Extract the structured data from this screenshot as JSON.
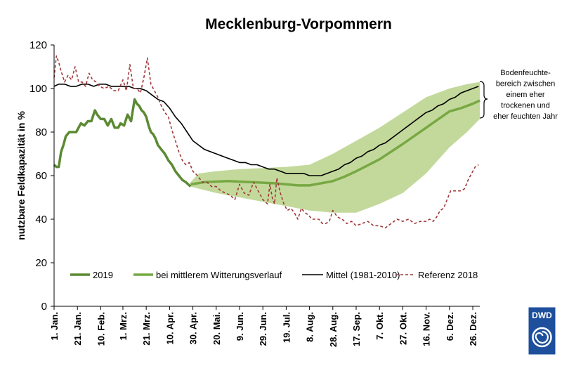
{
  "chart_data": {
    "type": "line",
    "title": "Mecklenburg-Vorpommern",
    "ylabel": "nutzbare Feldkapazität in %",
    "xlabel": "",
    "ylim": [
      0,
      120
    ],
    "yticks": [
      "0",
      "20",
      "40",
      "60",
      "80",
      "100",
      "120"
    ],
    "x_unit": "day of year",
    "xlim": [
      1,
      366
    ],
    "categories": [
      "1. Jan.",
      "21. Jan.",
      "10. Feb.",
      "1. Mrz.",
      "21. Mrz.",
      "10. Apr.",
      "30. Apr.",
      "20. Mai.",
      "9. Jun.",
      "29. Jun.",
      "19. Jul.",
      "8. Aug.",
      "28. Aug.",
      "17. Sep.",
      "7. Okt.",
      "27. Okt.",
      "16. Nov.",
      "6. Dez.",
      "26. Dez."
    ],
    "category_days": [
      1,
      21,
      41,
      60,
      80,
      100,
      120,
      140,
      160,
      180,
      200,
      220,
      240,
      260,
      280,
      300,
      320,
      340,
      360
    ],
    "grid": false,
    "legend_position": "bottom",
    "annotation": [
      "Bodenfeuchte-",
      "bereich zwischen",
      "einem eher",
      "trockenen und",
      "eher feuchten Jahr"
    ],
    "logo": "DWD",
    "colors": {
      "s2019": "#5b8a32",
      "forecast": "#77a843",
      "band": "#c3d99b",
      "mittel": "#000000",
      "referenz": "#a0393a"
    },
    "series": [
      {
        "name": "2019",
        "style": "solid-thick",
        "x": [
          1,
          3,
          5,
          7,
          9,
          11,
          14,
          17,
          20,
          24,
          27,
          30,
          33,
          36,
          38,
          41,
          44,
          47,
          50,
          53,
          56,
          58,
          61,
          64,
          67,
          70,
          72,
          74,
          76,
          78,
          80,
          82,
          84,
          86,
          88,
          90,
          93,
          96,
          99,
          102,
          105,
          108,
          111,
          114,
          116,
          118
        ],
        "y": [
          65,
          64,
          64,
          71,
          74,
          78,
          80,
          80,
          80,
          84,
          83,
          85,
          85,
          90,
          88,
          86,
          86,
          83,
          86,
          82,
          82,
          84,
          83,
          88,
          85,
          95,
          93,
          92,
          90,
          89,
          87,
          83,
          80,
          79,
          77,
          74,
          72,
          70,
          67,
          65,
          62,
          60,
          58,
          57,
          56,
          55
        ]
      },
      {
        "name": "bei mittlerem Witterungsverlauf",
        "style": "solid-medium",
        "x": [
          118,
          130,
          150,
          170,
          190,
          210,
          220,
          230,
          240,
          250,
          260,
          280,
          300,
          320,
          340,
          350,
          360,
          366
        ],
        "y": [
          56,
          57,
          57.5,
          57,
          56.5,
          55.5,
          55.5,
          56.5,
          57.5,
          59.5,
          62,
          67.5,
          74.5,
          82,
          89.5,
          91,
          93,
          94.5
        ]
      },
      {
        "name": "Mittel (1981-2010)",
        "style": "solid-thin",
        "x": [
          1,
          5,
          10,
          15,
          20,
          25,
          30,
          35,
          40,
          45,
          50,
          55,
          60,
          65,
          70,
          75,
          80,
          85,
          90,
          95,
          100,
          105,
          110,
          115,
          120,
          125,
          130,
          135,
          140,
          145,
          150,
          155,
          160,
          165,
          170,
          175,
          180,
          185,
          190,
          195,
          200,
          205,
          210,
          215,
          220,
          225,
          230,
          235,
          240,
          245,
          250,
          255,
          260,
          265,
          270,
          275,
          280,
          285,
          290,
          295,
          300,
          305,
          310,
          315,
          320,
          325,
          330,
          335,
          340,
          345,
          350,
          355,
          360,
          365
        ],
        "y": [
          101,
          102,
          102,
          101,
          101,
          102,
          102,
          101,
          102,
          102,
          101,
          101,
          101,
          101,
          100,
          100,
          99,
          97,
          95,
          94,
          91,
          87,
          84,
          80,
          76,
          74,
          72,
          71,
          70,
          69,
          68,
          67,
          66,
          66,
          65,
          65,
          64,
          63,
          63,
          62,
          61,
          61,
          61,
          61,
          60,
          60,
          60,
          61,
          62,
          63,
          65,
          66,
          68,
          69,
          71,
          72,
          74,
          75,
          77,
          79,
          81,
          83,
          85,
          87,
          89,
          90,
          92,
          93,
          95,
          96,
          98,
          99,
          100,
          101
        ]
      },
      {
        "name": "Referenz 2018",
        "style": "dashed",
        "x": [
          1,
          3,
          5,
          7,
          10,
          13,
          16,
          19,
          22,
          25,
          28,
          31,
          34,
          37,
          40,
          44,
          48,
          52,
          56,
          60,
          63,
          66,
          69,
          72,
          75,
          78,
          81,
          84,
          87,
          90,
          93,
          96,
          99,
          102,
          105,
          108,
          111,
          114,
          117,
          120,
          124,
          128,
          132,
          136,
          140,
          144,
          148,
          152,
          156,
          160,
          164,
          168,
          172,
          176,
          180,
          184,
          186,
          188,
          190,
          192,
          195,
          198,
          201,
          204,
          207,
          210,
          213,
          216,
          219,
          222,
          225,
          228,
          231,
          234,
          237,
          240,
          244,
          248,
          252,
          256,
          260,
          265,
          270,
          275,
          280,
          285,
          290,
          295,
          300,
          305,
          310,
          315,
          320,
          323,
          326,
          329,
          332,
          335,
          338,
          341,
          344,
          347,
          350,
          353,
          356,
          359,
          362,
          365
        ],
        "y": [
          105,
          115,
          112,
          108,
          103,
          106,
          104,
          110,
          103,
          103,
          101,
          107,
          104,
          103,
          101,
          100,
          101,
          99,
          99,
          104,
          99,
          111,
          100,
          100,
          98,
          105,
          114,
          102,
          99,
          96,
          92,
          89,
          87,
          81,
          76,
          71,
          67,
          65,
          66,
          62,
          60,
          57,
          57,
          55,
          55,
          53,
          52,
          51,
          49,
          56,
          52,
          51,
          57,
          53,
          49,
          47,
          56,
          50,
          47,
          59,
          52,
          47,
          44,
          45,
          43,
          40,
          45,
          43,
          42,
          40,
          40,
          40,
          38,
          38,
          39,
          44,
          41,
          40,
          38,
          39,
          37,
          38,
          39,
          37,
          37,
          36,
          38,
          40,
          39,
          40,
          38,
          39,
          39,
          40,
          39,
          41,
          44,
          45,
          49,
          53,
          53,
          53,
          53,
          54,
          58,
          61,
          64,
          65
        ]
      }
    ],
    "band": {
      "name": "Bodenfeuchtebereich",
      "x": [
        118,
        125,
        140,
        160,
        180,
        200,
        220,
        240,
        260,
        280,
        300,
        320,
        340,
        355,
        366
      ],
      "upper": [
        57,
        61,
        62,
        63,
        63.5,
        64,
        65,
        70,
        76,
        82,
        89,
        96,
        100,
        102,
        103
      ],
      "lower": [
        55,
        54,
        52,
        50,
        48,
        46,
        44,
        43,
        43,
        47,
        52,
        61,
        73,
        80,
        86
      ]
    }
  }
}
